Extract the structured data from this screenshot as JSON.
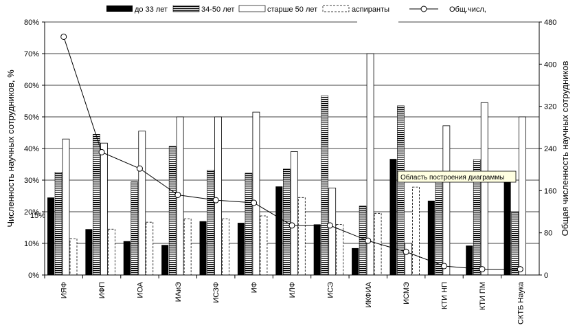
{
  "chart_data": {
    "type": "bar",
    "categories": [
      "ИЯФ",
      "ИФП",
      "ИОА",
      "ИАиЭ",
      "ИСЗФ",
      "ИФ",
      "ИЛФ",
      "ИСЭ",
      "ИКФИА",
      "ИСМЭ",
      "КТИ НП",
      "КТИ ПМ",
      "СКТБ Наука"
    ],
    "series": [
      {
        "name": "до 33 лет",
        "style": "solid",
        "values": [
          24.5,
          14.5,
          10.7,
          9.5,
          17,
          16.5,
          28,
          16,
          8.5,
          36.7,
          23.5,
          9.3,
          32
        ]
      },
      {
        "name": "34-50 лет",
        "style": "hatch",
        "values": [
          32.5,
          44.5,
          29.5,
          40.7,
          33.2,
          32.2,
          33.5,
          56.7,
          21.8,
          53.5,
          30,
          36.5,
          20
        ]
      },
      {
        "name": "старше 50 лет",
        "style": "open",
        "values": [
          43,
          41.7,
          45.5,
          50,
          50,
          51.5,
          39,
          27.5,
          70,
          10,
          47.2,
          54.5,
          50
        ]
      },
      {
        "name": "аспиранты",
        "style": "dashed",
        "values": [
          11.5,
          14.5,
          16.7,
          17.8,
          17.8,
          18.7,
          24.5,
          16,
          19.5,
          27.8,
          0,
          0,
          0
        ]
      }
    ],
    "line": {
      "name": "Общ.числ,",
      "values": [
        452,
        233,
        202,
        152,
        142,
        137,
        94,
        94,
        65,
        44,
        17,
        11,
        11
      ]
    },
    "ylim_left": [
      0,
      80
    ],
    "ylim_right": [
      0,
      480
    ],
    "yticks_left": [
      "0%",
      "10%",
      "20%",
      "30%",
      "40%",
      "50%",
      "60%",
      "70%",
      "80%"
    ],
    "yticks_right": [
      "0",
      "80",
      "160",
      "240",
      "320",
      "400",
      "480"
    ],
    "ylabel_left": "Численность научных сотрудников, %",
    "ylabel_right": "Общая численность научных сотрудников",
    "stray_label": "15%",
    "tooltip": "Область построения диаграммы",
    "grid": true,
    "legend_position": "top"
  },
  "colors": {
    "bar_fill": "#000000",
    "open_fill": "#ffffff",
    "line": "#000000",
    "background": "#ffffff",
    "tooltip_bg": "#ffffe1"
  }
}
